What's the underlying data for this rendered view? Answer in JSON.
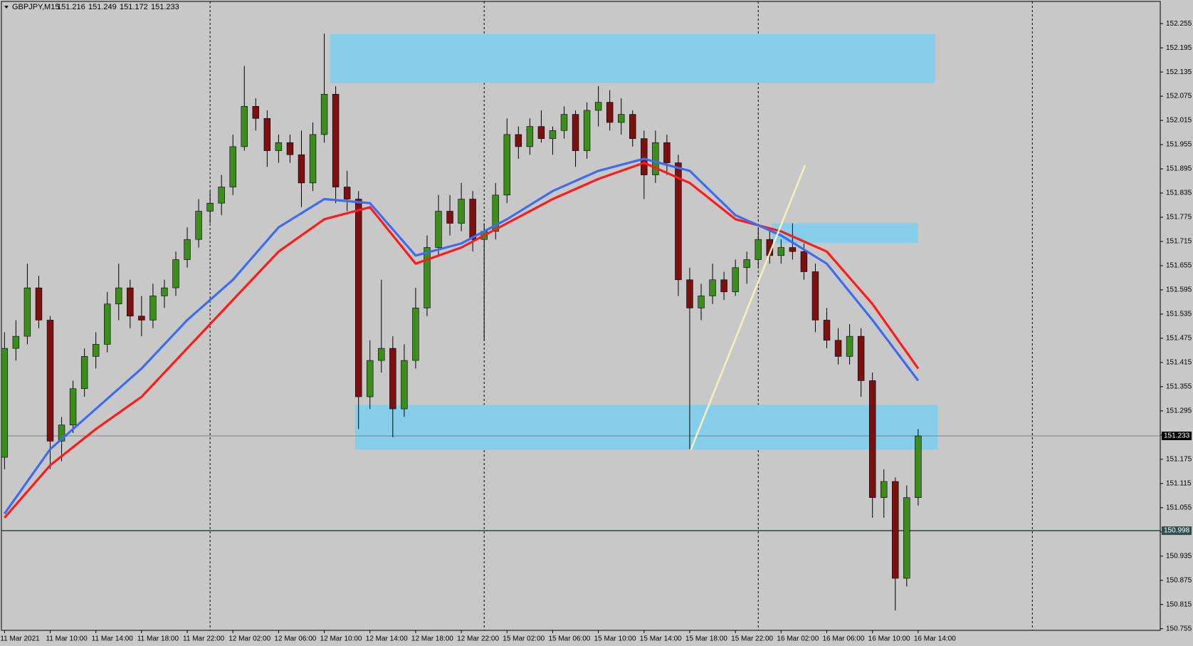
{
  "chart_data": {
    "type": "candlestick",
    "symbol": "GBPJPY,M15",
    "ohlc": [
      151.216,
      151.249,
      151.172,
      151.233
    ],
    "bull_color": "#3c8c1e",
    "bear_color": "#7a1010",
    "xlim": [
      -0.27,
      101.2
    ],
    "ylim": [
      150.751,
      152.31
    ],
    "yticks": [
      152.255,
      152.195,
      152.135,
      152.075,
      152.015,
      151.955,
      151.895,
      151.835,
      151.775,
      151.715,
      151.655,
      151.595,
      151.535,
      151.475,
      151.415,
      151.355,
      151.295,
      151.235,
      151.175,
      151.115,
      151.055,
      150.995,
      150.935,
      150.875,
      150.815,
      150.755
    ],
    "xticks": [
      {
        "value": 0,
        "label": "11 Mar 2021"
      },
      {
        "value": 4,
        "label": "11 Mar 10:00"
      },
      {
        "value": 8,
        "label": "11 Mar 14:00"
      },
      {
        "value": 12,
        "label": "11 Mar 18:00"
      },
      {
        "value": 16,
        "label": "11 Mar 22:00"
      },
      {
        "value": 20,
        "label": "12 Mar 02:00"
      },
      {
        "value": 24,
        "label": "12 Mar 06:00"
      },
      {
        "value": 28,
        "label": "12 Mar 10:00"
      },
      {
        "value": 32,
        "label": "12 Mar 14:00"
      },
      {
        "value": 36,
        "label": "12 Mar 18:00"
      },
      {
        "value": 40,
        "label": "12 Mar 22:00"
      },
      {
        "value": 44,
        "label": "15 Mar 02:00"
      },
      {
        "value": 48,
        "label": "15 Mar 06:00"
      },
      {
        "value": 52,
        "label": "15 Mar 10:00"
      },
      {
        "value": 56,
        "label": "15 Mar 14:00"
      },
      {
        "value": 60,
        "label": "15 Mar 18:00"
      },
      {
        "value": 64,
        "label": "15 Mar 22:00"
      },
      {
        "value": 68,
        "label": "16 Mar 02:00"
      },
      {
        "value": 72,
        "label": "16 Mar 06:00"
      },
      {
        "value": 76,
        "label": "16 Mar 10:00"
      },
      {
        "value": 80,
        "label": "16 Mar 14:00"
      }
    ],
    "separators": [
      18,
      42,
      66,
      90
    ],
    "candles": [
      {
        "open": 151.18,
        "high": 151.49,
        "low": 151.15,
        "close": 151.45
      },
      {
        "open": 151.45,
        "high": 151.52,
        "low": 151.42,
        "close": 151.48
      },
      {
        "open": 151.48,
        "high": 151.66,
        "low": 151.46,
        "close": 151.6
      },
      {
        "open": 151.6,
        "high": 151.63,
        "low": 151.5,
        "close": 151.52
      },
      {
        "open": 151.52,
        "high": 151.53,
        "low": 151.15,
        "close": 151.22
      },
      {
        "open": 151.22,
        "high": 151.28,
        "low": 151.17,
        "close": 151.26
      },
      {
        "open": 151.26,
        "high": 151.37,
        "low": 151.24,
        "close": 151.35
      },
      {
        "open": 151.35,
        "high": 151.45,
        "low": 151.33,
        "close": 151.43
      },
      {
        "open": 151.43,
        "high": 151.49,
        "low": 151.4,
        "close": 151.46
      },
      {
        "open": 151.46,
        "high": 151.59,
        "low": 151.44,
        "close": 151.56
      },
      {
        "open": 151.56,
        "high": 151.66,
        "low": 151.52,
        "close": 151.6
      },
      {
        "open": 151.6,
        "high": 151.62,
        "low": 151.5,
        "close": 151.53
      },
      {
        "open": 151.53,
        "high": 151.58,
        "low": 151.48,
        "close": 151.52
      },
      {
        "open": 151.52,
        "high": 151.61,
        "low": 151.5,
        "close": 151.58
      },
      {
        "open": 151.58,
        "high": 151.62,
        "low": 151.55,
        "close": 151.6
      },
      {
        "open": 151.6,
        "high": 151.69,
        "low": 151.58,
        "close": 151.67
      },
      {
        "open": 151.67,
        "high": 151.75,
        "low": 151.65,
        "close": 151.72
      },
      {
        "open": 151.72,
        "high": 151.82,
        "low": 151.7,
        "close": 151.79
      },
      {
        "open": 151.79,
        "high": 151.84,
        "low": 151.76,
        "close": 151.81
      },
      {
        "open": 151.81,
        "high": 151.88,
        "low": 151.78,
        "close": 151.85
      },
      {
        "open": 151.85,
        "high": 151.98,
        "low": 151.83,
        "close": 151.95
      },
      {
        "open": 151.95,
        "high": 152.15,
        "low": 151.94,
        "close": 152.05
      },
      {
        "open": 152.05,
        "high": 152.07,
        "low": 151.99,
        "close": 152.02
      },
      {
        "open": 152.02,
        "high": 152.04,
        "low": 151.9,
        "close": 151.94
      },
      {
        "open": 151.94,
        "high": 151.98,
        "low": 151.91,
        "close": 151.96
      },
      {
        "open": 151.96,
        "high": 151.98,
        "low": 151.91,
        "close": 151.93
      },
      {
        "open": 151.93,
        "high": 151.99,
        "low": 151.8,
        "close": 151.86
      },
      {
        "open": 151.86,
        "high": 152.01,
        "low": 151.84,
        "close": 151.98
      },
      {
        "open": 151.98,
        "high": 152.23,
        "low": 151.96,
        "close": 152.08
      },
      {
        "open": 152.08,
        "high": 152.1,
        "low": 151.81,
        "close": 151.85
      },
      {
        "open": 151.85,
        "high": 151.89,
        "low": 151.79,
        "close": 151.82
      },
      {
        "open": 151.82,
        "high": 151.84,
        "low": 151.25,
        "close": 151.33
      },
      {
        "open": 151.33,
        "high": 151.47,
        "low": 151.3,
        "close": 151.42
      },
      {
        "open": 151.42,
        "high": 151.62,
        "low": 151.39,
        "close": 151.45
      },
      {
        "open": 151.45,
        "high": 151.48,
        "low": 151.23,
        "close": 151.3
      },
      {
        "open": 151.3,
        "high": 151.46,
        "low": 151.28,
        "close": 151.42
      },
      {
        "open": 151.42,
        "high": 151.6,
        "low": 151.4,
        "close": 151.55
      },
      {
        "open": 151.55,
        "high": 151.73,
        "low": 151.53,
        "close": 151.7
      },
      {
        "open": 151.7,
        "high": 151.83,
        "low": 151.68,
        "close": 151.79
      },
      {
        "open": 151.79,
        "high": 151.83,
        "low": 151.73,
        "close": 151.76
      },
      {
        "open": 151.76,
        "high": 151.86,
        "low": 151.74,
        "close": 151.82
      },
      {
        "open": 151.82,
        "high": 151.84,
        "low": 151.69,
        "close": 151.72
      },
      {
        "open": 151.72,
        "high": 151.76,
        "low": 151.47,
        "close": 151.74
      },
      {
        "open": 151.74,
        "high": 151.86,
        "low": 151.72,
        "close": 151.83
      },
      {
        "open": 151.83,
        "high": 152.02,
        "low": 151.81,
        "close": 151.98
      },
      {
        "open": 151.98,
        "high": 152.0,
        "low": 151.92,
        "close": 151.95
      },
      {
        "open": 151.95,
        "high": 152.02,
        "low": 151.93,
        "close": 152.0
      },
      {
        "open": 152.0,
        "high": 152.04,
        "low": 151.96,
        "close": 151.97
      },
      {
        "open": 151.97,
        "high": 152.0,
        "low": 151.93,
        "close": 151.99
      },
      {
        "open": 151.99,
        "high": 152.05,
        "low": 151.97,
        "close": 152.03
      },
      {
        "open": 152.03,
        "high": 152.04,
        "low": 151.9,
        "close": 151.94
      },
      {
        "open": 151.94,
        "high": 152.06,
        "low": 151.92,
        "close": 152.04
      },
      {
        "open": 152.04,
        "high": 152.1,
        "low": 152.0,
        "close": 152.06
      },
      {
        "open": 152.06,
        "high": 152.09,
        "low": 151.99,
        "close": 152.01
      },
      {
        "open": 152.01,
        "high": 152.07,
        "low": 151.98,
        "close": 152.03
      },
      {
        "open": 152.03,
        "high": 152.04,
        "low": 151.95,
        "close": 151.97
      },
      {
        "open": 151.97,
        "high": 151.99,
        "low": 151.82,
        "close": 151.88
      },
      {
        "open": 151.88,
        "high": 151.99,
        "low": 151.86,
        "close": 151.96
      },
      {
        "open": 151.96,
        "high": 151.98,
        "low": 151.88,
        "close": 151.91
      },
      {
        "open": 151.91,
        "high": 151.93,
        "low": 151.58,
        "close": 151.62
      },
      {
        "open": 151.62,
        "high": 151.65,
        "low": 151.2,
        "close": 151.55
      },
      {
        "open": 151.55,
        "high": 151.61,
        "low": 151.52,
        "close": 151.58
      },
      {
        "open": 151.58,
        "high": 151.66,
        "low": 151.56,
        "close": 151.62
      },
      {
        "open": 151.62,
        "high": 151.64,
        "low": 151.57,
        "close": 151.59
      },
      {
        "open": 151.59,
        "high": 151.67,
        "low": 151.58,
        "close": 151.65
      },
      {
        "open": 151.65,
        "high": 151.69,
        "low": 151.61,
        "close": 151.67
      },
      {
        "open": 151.67,
        "high": 151.75,
        "low": 151.65,
        "close": 151.72
      },
      {
        "open": 151.72,
        "high": 151.74,
        "low": 151.66,
        "close": 151.68
      },
      {
        "open": 151.68,
        "high": 151.72,
        "low": 151.66,
        "close": 151.7
      },
      {
        "open": 151.7,
        "high": 151.76,
        "low": 151.67,
        "close": 151.69
      },
      {
        "open": 151.69,
        "high": 151.71,
        "low": 151.62,
        "close": 151.64
      },
      {
        "open": 151.64,
        "high": 151.66,
        "low": 151.49,
        "close": 151.52
      },
      {
        "open": 151.52,
        "high": 151.55,
        "low": 151.45,
        "close": 151.47
      },
      {
        "open": 151.47,
        "high": 151.5,
        "low": 151.41,
        "close": 151.43
      },
      {
        "open": 151.43,
        "high": 151.51,
        "low": 151.41,
        "close": 151.48
      },
      {
        "open": 151.48,
        "high": 151.5,
        "low": 151.33,
        "close": 151.37
      },
      {
        "open": 151.37,
        "high": 151.39,
        "low": 151.03,
        "close": 151.08
      },
      {
        "open": 151.08,
        "high": 151.15,
        "low": 151.03,
        "close": 151.12
      },
      {
        "open": 151.12,
        "high": 151.13,
        "low": 150.8,
        "close": 150.88
      },
      {
        "open": 150.88,
        "high": 151.11,
        "low": 150.86,
        "close": 151.08
      },
      {
        "open": 151.08,
        "high": 151.25,
        "low": 151.06,
        "close": 151.233
      }
    ],
    "lines": [
      {
        "color": "#ff1a1a",
        "x": [
          0,
          4,
          8,
          12,
          16,
          20,
          24,
          28,
          32,
          36,
          40,
          44,
          48,
          52,
          56,
          60,
          64,
          68,
          72,
          76,
          80
        ],
        "values": [
          151.03,
          151.16,
          151.25,
          151.33,
          151.45,
          151.57,
          151.69,
          151.77,
          151.8,
          151.66,
          151.7,
          151.76,
          151.82,
          151.87,
          151.91,
          151.86,
          151.77,
          151.74,
          151.69,
          151.56,
          151.4
        ]
      },
      {
        "color": "#3d6cf0",
        "x": [
          0,
          4,
          8,
          12,
          16,
          20,
          24,
          28,
          32,
          36,
          40,
          44,
          48,
          52,
          56,
          60,
          64,
          68,
          72,
          76,
          80
        ],
        "values": [
          151.04,
          151.2,
          151.3,
          151.4,
          151.52,
          151.62,
          151.75,
          151.82,
          151.81,
          151.68,
          151.71,
          151.77,
          151.84,
          151.89,
          151.92,
          151.89,
          151.78,
          151.73,
          151.66,
          151.52,
          151.37
        ]
      }
    ],
    "zones": [
      {
        "color": "#87ceeb",
        "x0": 28.5,
        "x1": 81.5,
        "y0": 152.229,
        "y1": 152.108
      },
      {
        "color": "#87ceeb",
        "x0": 67.2,
        "x1": 80.0,
        "y0": 151.76,
        "y1": 151.711
      },
      {
        "color": "#87ceeb",
        "x0": 30.7,
        "x1": 81.7,
        "y0": 151.31,
        "y1": 151.199
      }
    ],
    "trendline": {
      "color": "#f7f0c0",
      "x": [
        60.1,
        70.1
      ],
      "values": [
        151.199,
        151.904
      ]
    },
    "price_lines": [
      {
        "value": 151.233,
        "color": "#5a6a78",
        "box": "#000000"
      },
      {
        "value": 150.998,
        "color": "#1e3a3a",
        "box": "#2f4f4f"
      }
    ]
  }
}
